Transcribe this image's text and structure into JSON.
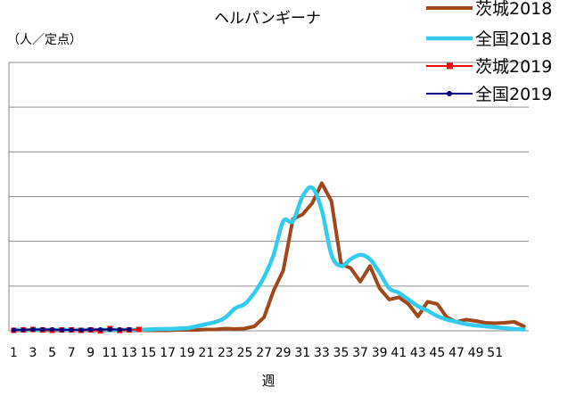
{
  "chart_data": {
    "type": "line",
    "title": "ヘルパンギーナ",
    "ylabel": "（人／定点）",
    "xlabel": "週",
    "x_tick_labels": [
      "1",
      "3",
      "5",
      "7",
      "9",
      "11",
      "13",
      "15",
      "17",
      "19",
      "21",
      "23",
      "25",
      "27",
      "29",
      "31",
      "33",
      "35",
      "37",
      "39",
      "41",
      "43",
      "45",
      "47",
      "49",
      "51"
    ],
    "ylim": [
      0,
      6
    ],
    "grid": true,
    "legend_position": "top-right",
    "series": [
      {
        "name": "茨城2018",
        "color": "#A0481C",
        "values": [
          0.01,
          0.01,
          0.02,
          0.01,
          0.01,
          0.01,
          0.01,
          0.01,
          0.01,
          0.01,
          0.01,
          0.01,
          0.01,
          0.01,
          0.01,
          0.01,
          0.01,
          0.02,
          0.02,
          0.02,
          0.03,
          0.03,
          0.05,
          0.04,
          0.05,
          0.1,
          0.3,
          0.9,
          1.35,
          2.5,
          2.6,
          2.85,
          3.3,
          2.9,
          1.5,
          1.4,
          1.1,
          1.45,
          0.95,
          0.7,
          0.75,
          0.6,
          0.32,
          0.65,
          0.6,
          0.3,
          0.2,
          0.25,
          0.22,
          0.18,
          0.17,
          0.18,
          0.2,
          0.1
        ]
      },
      {
        "name": "全国2018",
        "color": "#33CCEE",
        "values": [
          0.02,
          0.02,
          0.02,
          0.02,
          0.02,
          0.02,
          0.02,
          0.02,
          0.02,
          0.02,
          0.02,
          0.02,
          0.02,
          0.02,
          0.03,
          0.04,
          0.04,
          0.05,
          0.06,
          0.1,
          0.15,
          0.2,
          0.3,
          0.5,
          0.6,
          0.85,
          1.2,
          1.7,
          2.45,
          2.45,
          3.0,
          3.2,
          2.7,
          1.7,
          1.45,
          1.6,
          1.7,
          1.6,
          1.3,
          0.95,
          0.85,
          0.7,
          0.55,
          0.45,
          0.33,
          0.25,
          0.2,
          0.15,
          0.12,
          0.1,
          0.08,
          0.06,
          0.04,
          0.03
        ]
      },
      {
        "name": "茨城2019",
        "color": "#FF0000",
        "values": [
          0.01,
          0.02,
          0.03,
          0.02,
          0.01,
          0.02,
          0.02,
          0.01,
          0.02,
          0.0,
          0.05,
          0.01,
          0.02,
          0.03
        ]
      },
      {
        "name": "全国2019",
        "color": "#000080",
        "values": [
          0.02,
          0.02,
          0.03,
          0.03,
          0.03,
          0.02,
          0.02,
          0.02,
          0.03,
          0.03,
          0.03,
          0.03,
          0.03
        ]
      }
    ]
  }
}
